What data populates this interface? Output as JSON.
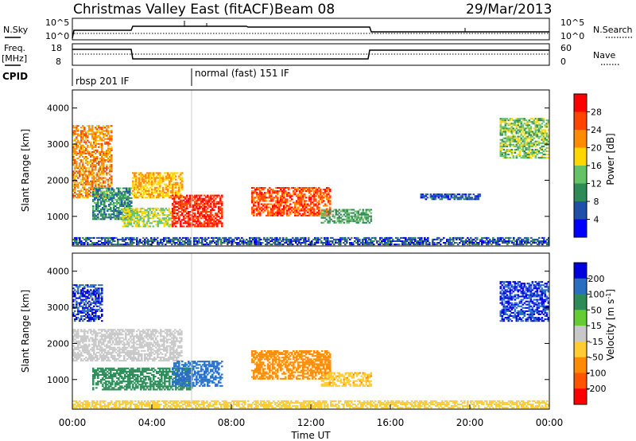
{
  "header": {
    "title": "Christmas Valley East (fitACF)",
    "beam": "Beam 08",
    "date": "29/Mar/2013"
  },
  "colors": {
    "power_scale": [
      "#0000ff",
      "#1f4fa8",
      "#2e8b57",
      "#66c266",
      "#ffd700",
      "#ff8c00",
      "#ff4500",
      "#ff0000"
    ],
    "velocity_scale": [
      "#0000dd",
      "#2a6ec0",
      "#2e8b57",
      "#66cc33",
      "#c8c8c8",
      "#ffcc33",
      "#ff8c00",
      "#ff5500",
      "#ff0000"
    ],
    "ground_scatter": "#bdbdbd"
  },
  "panels": {
    "nsky": {
      "label": "N.Sky",
      "left_ticks": [
        "10^5",
        "10^0"
      ],
      "right_label": "N.Search",
      "right_ticks": [
        "10^5",
        "10^0"
      ]
    },
    "freq": {
      "label": "Freq.",
      "unit": "[MHz]",
      "left_ticks": [
        "18",
        "8"
      ],
      "right_label": "Nave",
      "right_ticks": [
        "60",
        "0"
      ]
    },
    "cpid": {
      "label": "CPID",
      "modes": [
        {
          "name": "rbsp 201 IF",
          "start_hour": 0
        },
        {
          "name": "normal (fast) 151 IF",
          "start_hour": 6
        }
      ]
    }
  },
  "chart_data": [
    {
      "type": "heatmap",
      "name": "power",
      "ylabel": "Slant Range [km]",
      "yticks": [
        1000,
        2000,
        3000,
        4000
      ],
      "ylim": [
        180,
        4500
      ],
      "xlim": [
        0,
        24
      ],
      "colorbar": {
        "label": "Power [dB]",
        "ticks": [
          "4",
          "8",
          "12",
          "16",
          "20",
          "24",
          "28"
        ],
        "range": [
          0,
          32
        ]
      },
      "regions": [
        {
          "t0": 0.0,
          "t1": 2.0,
          "r0": 1500,
          "r1": 3500,
          "level": 22
        },
        {
          "t0": 1.0,
          "t1": 3.0,
          "r0": 900,
          "r1": 1800,
          "level": 10
        },
        {
          "t0": 2.5,
          "t1": 5.0,
          "r0": 700,
          "r1": 1200,
          "level": 16
        },
        {
          "t0": 3.0,
          "t1": 5.5,
          "r0": 1500,
          "r1": 2200,
          "level": 20
        },
        {
          "t0": 5.0,
          "t1": 7.5,
          "r0": 700,
          "r1": 1600,
          "level": 28
        },
        {
          "t0": 9.0,
          "t1": 13.0,
          "r0": 1000,
          "r1": 1800,
          "level": 26
        },
        {
          "t0": 12.5,
          "t1": 15.0,
          "r0": 800,
          "r1": 1200,
          "level": 12
        },
        {
          "t0": 17.5,
          "t1": 20.5,
          "r0": 1450,
          "r1": 1600,
          "level": 6
        },
        {
          "t0": 21.5,
          "t1": 24.0,
          "r0": 2600,
          "r1": 3700,
          "level": 14
        },
        {
          "t0": 0.0,
          "t1": 24.0,
          "r0": 200,
          "r1": 400,
          "level": 6
        }
      ]
    },
    {
      "type": "heatmap",
      "name": "velocity",
      "ylabel": "Slant Range [km]",
      "xlabel": "Time UT",
      "xticks": [
        "00:00",
        "04:00",
        "08:00",
        "12:00",
        "16:00",
        "20:00",
        "00:00"
      ],
      "yticks": [
        1000,
        2000,
        3000,
        4000
      ],
      "ylim": [
        180,
        4500
      ],
      "xlim": [
        0,
        24
      ],
      "colorbar": {
        "label": "Velocity [m s^-1]",
        "ticks": [
          "200",
          "100",
          "50",
          "15",
          "-15",
          "-50",
          "-100",
          "-200"
        ],
        "range": [
          -250,
          250
        ]
      },
      "regions": [
        {
          "t0": 0.0,
          "t1": 1.5,
          "r0": 2600,
          "r1": 3600,
          "value": 200
        },
        {
          "t0": 0.0,
          "t1": 5.5,
          "r0": 1500,
          "r1": 2400,
          "value": 0
        },
        {
          "t0": 1.0,
          "t1": 6.0,
          "r0": 700,
          "r1": 1300,
          "value": 70
        },
        {
          "t0": 5.0,
          "t1": 7.5,
          "r0": 800,
          "r1": 1500,
          "value": 180
        },
        {
          "t0": 9.0,
          "t1": 13.0,
          "r0": 1000,
          "r1": 1800,
          "value": -70
        },
        {
          "t0": 12.5,
          "t1": 15.0,
          "r0": 800,
          "r1": 1200,
          "value": -40
        },
        {
          "t0": 21.5,
          "t1": 24.0,
          "r0": 2600,
          "r1": 3700,
          "value": 200
        },
        {
          "t0": 0.0,
          "t1": 24.0,
          "r0": 200,
          "r1": 400,
          "value": -30
        }
      ]
    }
  ]
}
